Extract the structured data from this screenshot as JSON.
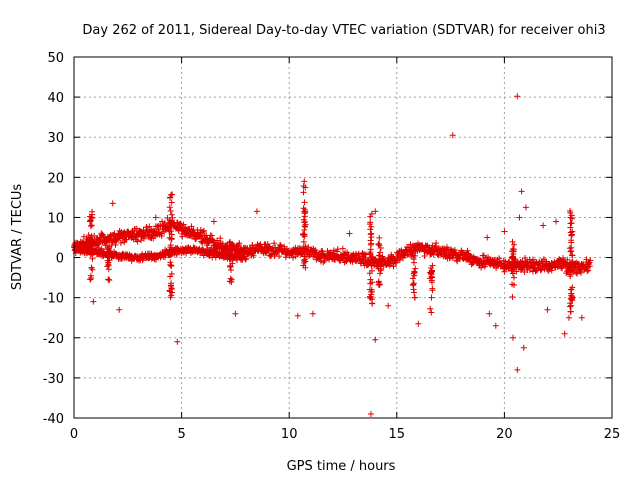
{
  "chart_data": {
    "type": "scatter",
    "title": "Day 262 of 2011, Sidereal Day-to-day VTEC variation (SDTVAR) for receiver ohi3",
    "xlabel": "GPS time / hours",
    "ylabel": "SDTVAR / TECUs",
    "xlim": [
      0,
      25
    ],
    "ylim": [
      -40,
      50
    ],
    "xticks": [
      0,
      5,
      10,
      15,
      20,
      25
    ],
    "yticks": [
      -40,
      -30,
      -20,
      -10,
      0,
      10,
      20,
      30,
      40,
      50
    ],
    "grid": true,
    "marker": "+",
    "series": [
      {
        "name": "SDTVAR",
        "color": "#e00000",
        "bands": [
          {
            "x": [
              0.0,
              0.5,
              1.0,
              1.5,
              2.0,
              2.5,
              3.0,
              3.5,
              4.0,
              4.5,
              5.0,
              5.5,
              6.0,
              6.5,
              7.0,
              7.5,
              8.0,
              8.5,
              9.0,
              9.5,
              10.0,
              10.5,
              11.0,
              11.5,
              12.0,
              12.5,
              13.0,
              13.5,
              14.0,
              14.5,
              15.0,
              15.5,
              16.0,
              16.5,
              17.0,
              17.5,
              18.0,
              18.5,
              19.0,
              19.5,
              20.0,
              20.5,
              21.0,
              21.5,
              22.0,
              22.5,
              23.0,
              23.5,
              24.0
            ],
            "y": [
              3.0,
              3.5,
              4.0,
              4.5,
              5.0,
              5.5,
              5.8,
              6.0,
              7.0,
              8.5,
              7.0,
              6.0,
              5.0,
              3.5,
              2.5,
              2.0,
              1.5,
              2.0,
              2.0,
              1.8,
              1.5,
              1.5,
              1.0,
              0.5,
              0.5,
              0.2,
              0.0,
              -0.5,
              -1.0,
              -1.0,
              0.0,
              1.5,
              2.5,
              2.0,
              1.5,
              1.0,
              0.5,
              -0.5,
              -1.0,
              -1.5,
              -2.0,
              -2.0,
              -2.0,
              -2.0,
              -2.0,
              -1.5,
              -2.0,
              -2.5,
              -2.0
            ],
            "spread": 2.2,
            "count": 1300
          },
          {
            "x": [
              0.0,
              1.0,
              2.0,
              3.0,
              4.0,
              4.5,
              5.0,
              6.0,
              7.0,
              8.0
            ],
            "y": [
              2.0,
              1.5,
              0.5,
              0.0,
              0.5,
              1.5,
              2.0,
              1.5,
              0.5,
              0.0
            ],
            "spread": 1.3,
            "count": 450
          }
        ],
        "spikes": [
          {
            "x": 0.8,
            "ymin": -6,
            "ymax": 12
          },
          {
            "x": 1.6,
            "ymin": -6,
            "ymax": 6
          },
          {
            "x": 4.5,
            "ymin": -10,
            "ymax": 16
          },
          {
            "x": 7.3,
            "ymin": -7,
            "ymax": 4
          },
          {
            "x": 10.7,
            "ymin": -4,
            "ymax": 18
          },
          {
            "x": 13.8,
            "ymin": -12,
            "ymax": 11
          },
          {
            "x": 14.2,
            "ymin": -8,
            "ymax": 5
          },
          {
            "x": 15.8,
            "ymin": -10,
            "ymax": 3
          },
          {
            "x": 16.6,
            "ymin": -14,
            "ymax": 2
          },
          {
            "x": 20.4,
            "ymin": -10,
            "ymax": 4
          },
          {
            "x": 23.1,
            "ymin": -14,
            "ymax": 12
          }
        ],
        "outliers": [
          {
            "x": 17.6,
            "y": 30.5
          },
          {
            "x": 20.6,
            "y": 40.2
          },
          {
            "x": 13.8,
            "y": -39.0
          },
          {
            "x": 20.6,
            "y": -28.0
          },
          {
            "x": 20.9,
            "y": -22.5
          },
          {
            "x": 20.4,
            "y": -20.0
          },
          {
            "x": 14.0,
            "y": -20.5
          },
          {
            "x": 4.8,
            "y": -21.0
          },
          {
            "x": 22.8,
            "y": -19.0
          },
          {
            "x": 1.8,
            "y": 13.5
          },
          {
            "x": 8.5,
            "y": 11.5
          },
          {
            "x": 20.8,
            "y": 16.5
          },
          {
            "x": 21.0,
            "y": 12.5
          },
          {
            "x": 20.7,
            "y": 10.0
          },
          {
            "x": 10.7,
            "y": 19.0
          },
          {
            "x": 14.0,
            "y": 11.5
          },
          {
            "x": 0.9,
            "y": -11.0
          },
          {
            "x": 2.1,
            "y": -13.0
          },
          {
            "x": 7.5,
            "y": -14.0
          },
          {
            "x": 10.4,
            "y": -14.5
          },
          {
            "x": 11.1,
            "y": -14.0
          },
          {
            "x": 19.3,
            "y": -14.0
          },
          {
            "x": 19.6,
            "y": -17.0
          },
          {
            "x": 22.0,
            "y": -13.0
          },
          {
            "x": 23.0,
            "y": -15.0
          },
          {
            "x": 23.6,
            "y": -15.0
          },
          {
            "x": 19.2,
            "y": 5.0
          },
          {
            "x": 20.0,
            "y": 6.5
          },
          {
            "x": 21.8,
            "y": 8.0
          },
          {
            "x": 22.4,
            "y": 9.0
          },
          {
            "x": 3.8,
            "y": 10.0
          },
          {
            "x": 6.5,
            "y": 9.0
          },
          {
            "x": 12.8,
            "y": 6.0
          },
          {
            "x": 16.0,
            "y": -16.5
          },
          {
            "x": 14.6,
            "y": -12.0
          }
        ]
      }
    ]
  }
}
